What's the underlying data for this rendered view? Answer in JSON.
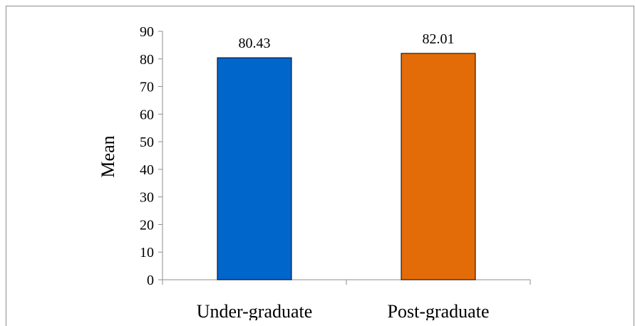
{
  "chart_data": {
    "type": "bar",
    "title": "",
    "xlabel": "",
    "ylabel": "Mean",
    "ylim": [
      0,
      90
    ],
    "yticks": [
      0,
      10,
      20,
      30,
      40,
      50,
      60,
      70,
      80,
      90
    ],
    "categories": [
      "Under-graduate",
      "Post-graduate"
    ],
    "values": [
      80.43,
      82.01
    ],
    "data_labels": [
      "80.43",
      "82.01"
    ],
    "colors": [
      "#0066cc",
      "#e36c09"
    ],
    "grid": false,
    "legend": "none"
  }
}
